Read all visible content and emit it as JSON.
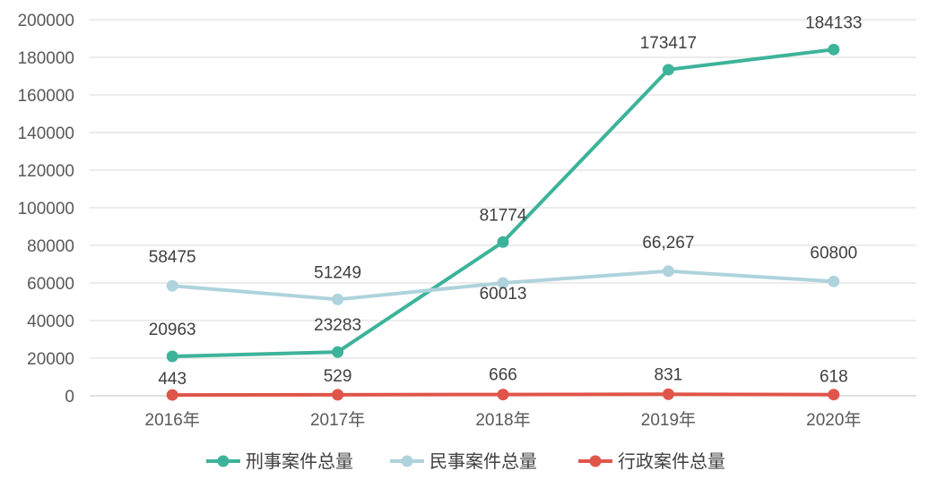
{
  "chart_data": {
    "type": "line",
    "title": "",
    "xlabel": "",
    "ylabel": "",
    "categories": [
      "2016年",
      "2017年",
      "2018年",
      "2019年",
      "2020年"
    ],
    "ylim": [
      0,
      200000
    ],
    "yticks": [
      0,
      20000,
      40000,
      60000,
      80000,
      100000,
      120000,
      140000,
      160000,
      180000,
      200000
    ],
    "grid": true,
    "legend_position": "bottom",
    "series": [
      {
        "name": "刑事案件总量",
        "color": "#3db39a",
        "values": [
          20963,
          23283,
          81774,
          173417,
          184133
        ],
        "labels": [
          "20963",
          "23283",
          "81774",
          "173417",
          "184133"
        ]
      },
      {
        "name": "民事案件总量",
        "color": "#aed3dc",
        "values": [
          58475,
          51249,
          60013,
          66267,
          60800
        ],
        "labels": [
          "58475",
          "51249",
          "60013",
          "66,267",
          "60800"
        ]
      },
      {
        "name": "行政案件总量",
        "color": "#e0554a",
        "values": [
          443,
          529,
          666,
          831,
          618
        ],
        "labels": [
          "443",
          "529",
          "666",
          "831",
          "618"
        ]
      }
    ]
  }
}
